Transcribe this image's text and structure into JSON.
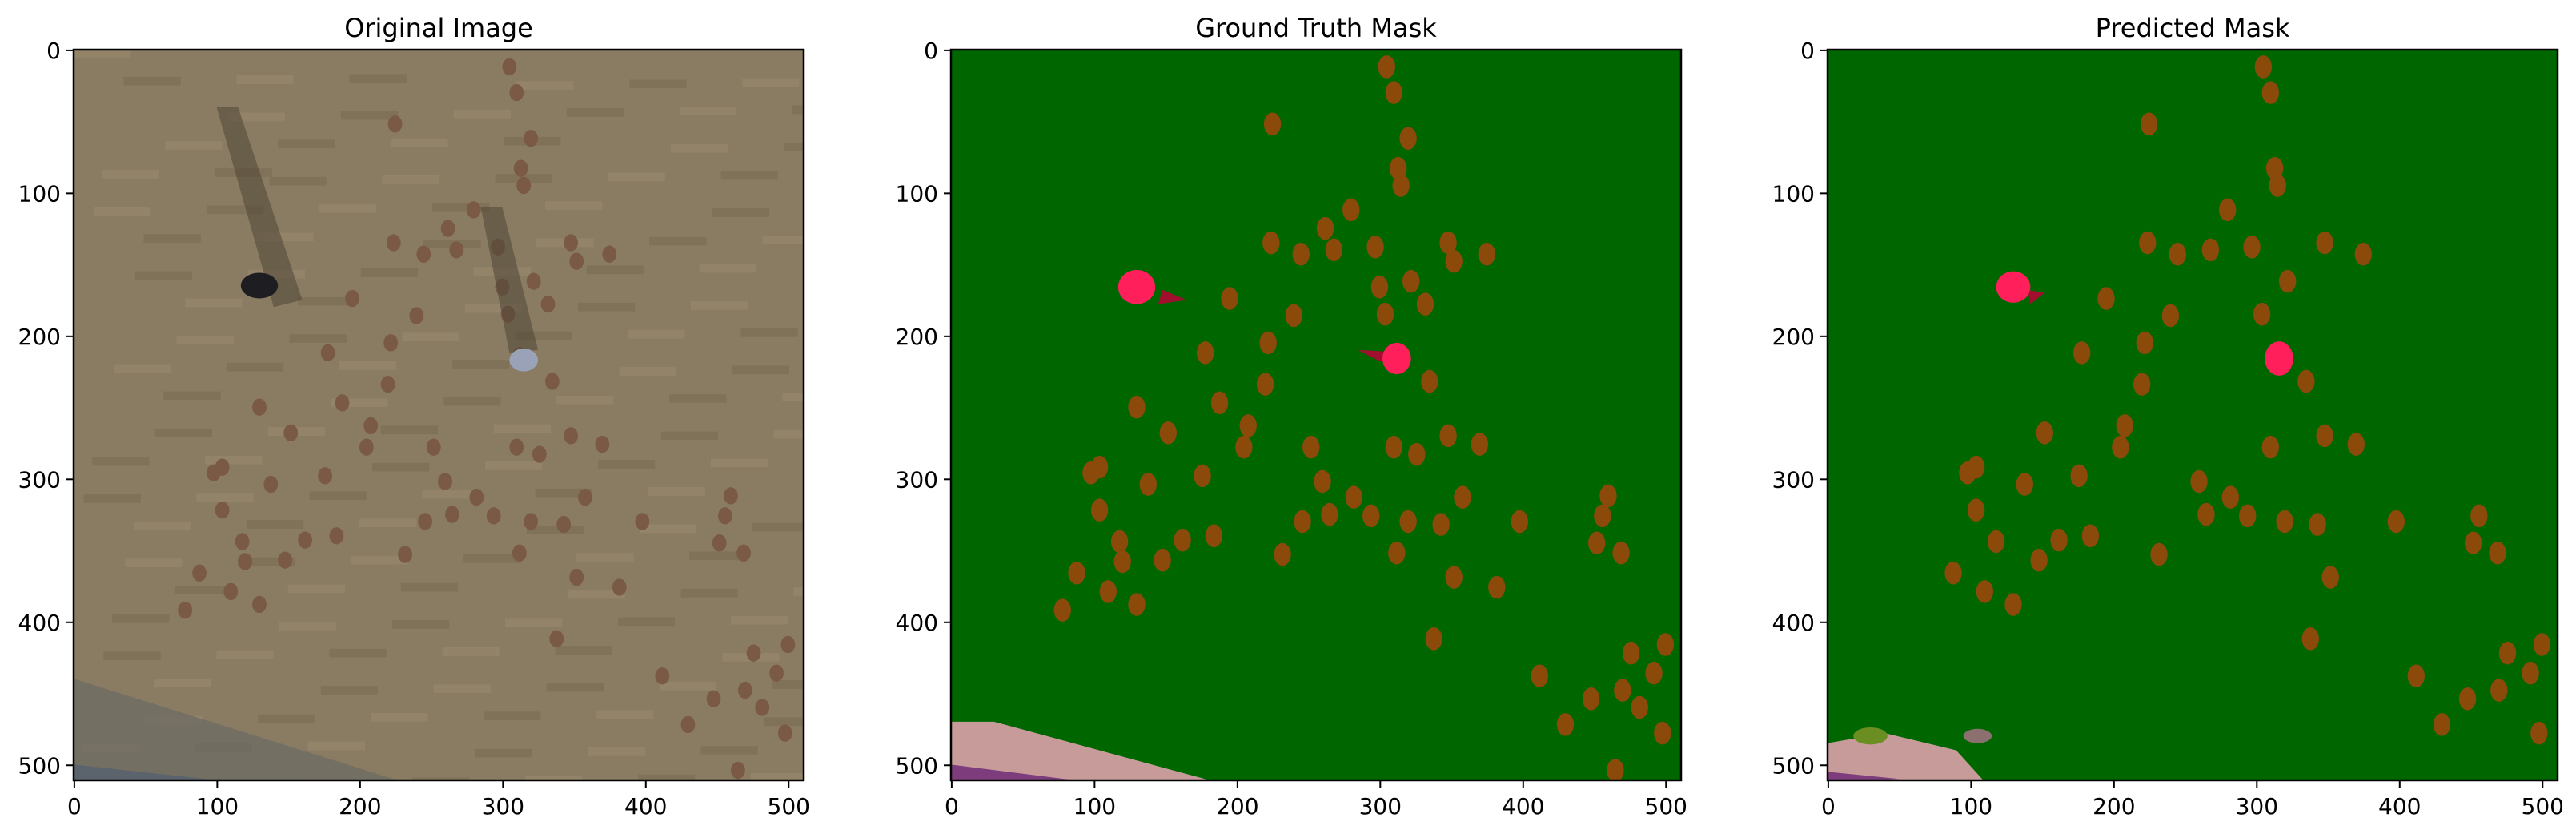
{
  "chart_data": [
    {
      "type": "image",
      "title": "Original Image",
      "xlim": [
        0,
        511
      ],
      "ylim": [
        511,
        0
      ],
      "x_ticks": [
        0,
        100,
        200,
        300,
        400,
        500
      ],
      "y_ticks": [
        0,
        100,
        200,
        300,
        400,
        500
      ],
      "content": "aerial-photo",
      "colors": {
        "field": "#8a7c62",
        "field_dark": "#6e6148",
        "mound": "#7a5a44",
        "person_dark": "#1e1e22",
        "person_light": "#9aa2b8"
      }
    },
    {
      "type": "image",
      "title": "Ground Truth Mask",
      "xlim": [
        0,
        511
      ],
      "ylim": [
        511,
        0
      ],
      "x_ticks": [
        0,
        100,
        200,
        300,
        400,
        500
      ],
      "y_ticks": [
        0,
        100,
        200,
        300,
        400,
        500
      ],
      "content": "segmentation-mask",
      "colors": {
        "background": "#006600",
        "mound": "#8b4a0a",
        "person": "#ff1f5b",
        "person_shadow": "#a0102e",
        "path": "#c89b9b",
        "edge": "#7d3d7d"
      }
    },
    {
      "type": "image",
      "title": "Predicted Mask",
      "xlim": [
        0,
        511
      ],
      "ylim": [
        511,
        0
      ],
      "x_ticks": [
        0,
        100,
        200,
        300,
        400,
        500
      ],
      "y_ticks": [
        0,
        100,
        200,
        300,
        400,
        500
      ],
      "content": "segmentation-mask",
      "colors": {
        "background": "#006600",
        "mound": "#8b4a0a",
        "person": "#ff1f5b",
        "person_shadow": "#a0102e",
        "path": "#c89b9b",
        "edge": "#7d3d7d",
        "vegetation": "#6b8e23"
      }
    }
  ]
}
